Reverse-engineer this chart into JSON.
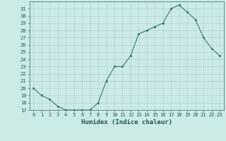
{
  "x": [
    0,
    1,
    2,
    3,
    4,
    5,
    6,
    7,
    8,
    9,
    10,
    11,
    12,
    13,
    14,
    15,
    16,
    17,
    18,
    19,
    20,
    21,
    22,
    23
  ],
  "y": [
    20,
    19,
    18.5,
    17.5,
    17,
    17,
    17,
    17,
    18,
    21,
    23,
    23,
    24.5,
    27.5,
    28,
    28.5,
    29,
    31,
    31.5,
    30.5,
    29.5,
    27,
    25.5,
    24.5
  ],
  "line_color": "#2d7d6e",
  "marker_color": "#2d7d6e",
  "bg_color": "#cceae8",
  "grid_color": "#aacccc",
  "xlabel": "Humidex (Indice chaleur)",
  "ylim": [
    17,
    32
  ],
  "xlim": [
    -0.5,
    23.5
  ],
  "yticks": [
    17,
    18,
    19,
    20,
    21,
    22,
    23,
    24,
    25,
    26,
    27,
    28,
    29,
    30,
    31
  ],
  "xticks": [
    0,
    1,
    2,
    3,
    4,
    5,
    6,
    7,
    8,
    9,
    10,
    11,
    12,
    13,
    14,
    15,
    16,
    17,
    18,
    19,
    20,
    21,
    22,
    23
  ],
  "xtick_labels": [
    "0",
    "1",
    "2",
    "3",
    "4",
    "5",
    "6",
    "7",
    "8",
    "9",
    "10",
    "11",
    "12",
    "13",
    "14",
    "15",
    "16",
    "17",
    "18",
    "19",
    "20",
    "21",
    "22",
    "23"
  ]
}
